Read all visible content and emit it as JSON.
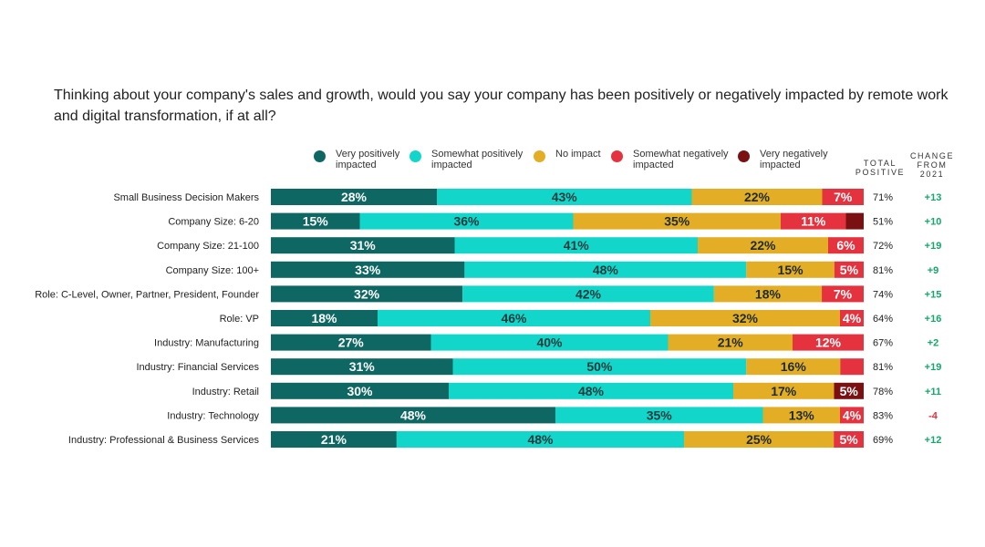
{
  "chart_data": {
    "type": "bar",
    "orientation": "horizontal",
    "stacked": true,
    "title": "Thinking about your company's sales and growth, would you say your company has been positively or negatively impacted by remote work and digital transformation, if at all?",
    "categories": [
      "Small Business Decision Makers",
      "Company Size: 6-20",
      "Company Size: 21-100",
      "Company Size: 100+",
      "Role: C-Level, Owner, Partner, President, Founder",
      "Role: VP",
      "Industry: Manufacturing",
      "Industry: Financial Services",
      "Industry: Retail",
      "Industry: Technology",
      "Industry: Professional & Business Services"
    ],
    "series": [
      {
        "name": "Very positively impacted",
        "color": "#0e6762",
        "values": [
          28,
          15,
          31,
          33,
          32,
          18,
          27,
          31,
          30,
          48,
          21
        ],
        "labels": [
          "28%",
          "15%",
          "31%",
          "33%",
          "32%",
          "18%",
          "27%",
          "31%",
          "30%",
          "48%",
          "21%"
        ]
      },
      {
        "name": "Somewhat positively impacted",
        "color": "#13d6cb",
        "values": [
          43,
          36,
          41,
          48,
          42,
          46,
          40,
          50,
          48,
          35,
          48
        ],
        "labels": [
          "43%",
          "36%",
          "41%",
          "48%",
          "42%",
          "46%",
          "40%",
          "50%",
          "48%",
          "35%",
          "48%"
        ]
      },
      {
        "name": "No impact",
        "color": "#e3ae26",
        "values": [
          22,
          35,
          22,
          15,
          18,
          32,
          21,
          16,
          17,
          13,
          25
        ],
        "labels": [
          "22%",
          "35%",
          "22%",
          "15%",
          "18%",
          "32%",
          "21%",
          "16%",
          "17%",
          "13%",
          "25%"
        ]
      },
      {
        "name": "Somewhat negatively impacted",
        "color": "#e5323f",
        "values": [
          7,
          11,
          6,
          5,
          7,
          4,
          12,
          4,
          0,
          4,
          5
        ],
        "labels": [
          "7%",
          "11%",
          "6%",
          "5%",
          "7%",
          "4%",
          "12%",
          "",
          "",
          "4%",
          "5%"
        ]
      },
      {
        "name": "Very negatively impacted",
        "color": "#7b1013",
        "values": [
          0,
          3,
          0,
          0,
          0,
          0,
          0,
          0,
          5,
          0,
          0
        ],
        "labels": [
          "",
          "",
          "",
          "",
          "",
          "",
          "",
          "",
          "5%",
          "",
          ""
        ]
      }
    ],
    "total_positive_header": "TOTAL POSITIVE",
    "total_positive": [
      "71%",
      "51%",
      "72%",
      "81%",
      "74%",
      "64%",
      "67%",
      "81%",
      "78%",
      "83%",
      "69%"
    ],
    "change_header": "CHANGE FROM 2021",
    "change_from_2021": [
      "+13",
      "+10",
      "+19",
      "+9",
      "+15",
      "+16",
      "+2",
      "+19",
      "+11",
      "-4",
      "+12"
    ],
    "positive_change_color": "#14a86a",
    "negative_change_color": "#e5323f",
    "xlim": [
      0,
      100
    ]
  }
}
